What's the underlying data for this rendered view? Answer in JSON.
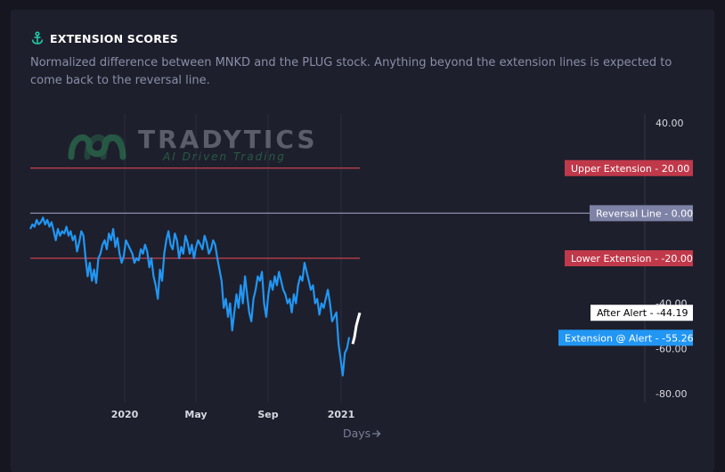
{
  "header": {
    "title": "EXTENSION SCORES",
    "icon": "anchor-icon",
    "icon_color": "#1fc7a4",
    "description": "Normalized difference between MNKD and the PLUG stock. Anything beyond the extension lines is expected to come back to the reversal line."
  },
  "watermark": {
    "name": "TRADYTICS",
    "tagline": "AI Driven Trading"
  },
  "colors": {
    "background": "#1e1f2c",
    "series": "#2196f3",
    "after_alert": "#ffffff",
    "upper_line": "#c9424f",
    "lower_line": "#c9424f",
    "reversal_line": "#8a8eac"
  },
  "chart_data": {
    "type": "line",
    "xlabel": "Days",
    "x_ticks": [
      "2020",
      "May",
      "Sep",
      "2021"
    ],
    "y_ticks": [
      "40.00",
      "-40.00",
      "-60.00",
      "-80.00"
    ],
    "ylim": [
      -84,
      44
    ],
    "reference_lines": [
      {
        "label": "Upper Extension",
        "value": "20.00"
      },
      {
        "label": "Reversal Line",
        "value": "0.00"
      },
      {
        "label": "Lower Extension",
        "value": "-20.00"
      }
    ],
    "markers": [
      {
        "label": "After Alert",
        "value": "-44.19"
      },
      {
        "label": "Extension @ Alert",
        "value": "-55.26"
      }
    ],
    "series": [
      {
        "values": [
          -7,
          -5,
          -6,
          -3,
          -5,
          -4,
          -2,
          -5,
          -3,
          -6,
          -4,
          -8,
          -12,
          -7,
          -10,
          -8,
          -9,
          -6,
          -10,
          -8,
          -12,
          -10,
          -17,
          -13,
          -8,
          -10,
          -20,
          -28,
          -22,
          -30,
          -25,
          -31,
          -20,
          -18,
          -14,
          -12,
          -16,
          -9,
          -12,
          -7,
          -15,
          -11,
          -18,
          -22,
          -19,
          -12,
          -14,
          -16,
          -18,
          -22,
          -20,
          -21,
          -16,
          -18,
          -14,
          -17,
          -24,
          -20,
          -28,
          -32,
          -38,
          -25,
          -30,
          -18,
          -12,
          -8,
          -14,
          -16,
          -9,
          -12,
          -20,
          -15,
          -18,
          -10,
          -13,
          -18,
          -14,
          -20,
          -15,
          -12,
          -14,
          -16,
          -10,
          -13,
          -18,
          -16,
          -12,
          -14,
          -20,
          -25,
          -30,
          -42,
          -38,
          -46,
          -40,
          -52,
          -44,
          -36,
          -42,
          -32,
          -40,
          -28,
          -36,
          -44,
          -48,
          -38,
          -34,
          -28,
          -30,
          -26,
          -40,
          -46,
          -36,
          -30,
          -34,
          -28,
          -32,
          -26,
          -30,
          -34,
          -36,
          -40,
          -38,
          -44,
          -36,
          -40,
          -32,
          -28,
          -30,
          -22,
          -26,
          -30,
          -34,
          -32,
          -40,
          -38,
          -45,
          -40,
          -42,
          -38,
          -34,
          -40,
          -48,
          -46,
          -44,
          -58,
          -65,
          -72,
          -62,
          -60,
          -55
        ],
        "after_alert_values": [
          -58,
          -55,
          -50,
          -47,
          -44.19
        ]
      }
    ]
  }
}
